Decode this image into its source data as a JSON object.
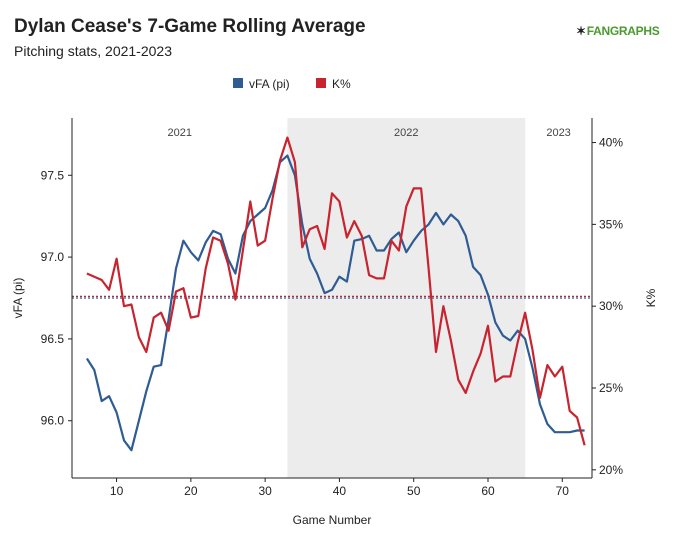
{
  "header": {
    "title": "Dylan Cease's 7-Game Rolling Average",
    "subtitle": "Pitching stats, 2021-2023",
    "logo_text": "FANGRAPHS"
  },
  "colors": {
    "vfa": "#2e5c93",
    "kpct": "#c8242f",
    "shade": "#ececec",
    "axis": "#222222"
  },
  "chart_data": {
    "type": "line",
    "title": "Dylan Cease's 7-Game Rolling Average",
    "subtitle": "Pitching stats, 2021-2023",
    "xlabel": "Game Number",
    "ylabel_left": "vFA (pi)",
    "ylabel_right": "K%",
    "xlim": [
      4,
      74
    ],
    "ylim_left": [
      95.65,
      97.85
    ],
    "ylim_right": [
      0.195,
      0.415
    ],
    "x_ticks": [
      10,
      20,
      30,
      40,
      50,
      60,
      70
    ],
    "y_ticks_left": [
      96.0,
      96.5,
      97.0,
      97.5
    ],
    "y_tick_labels_left": [
      "96.0",
      "96.5",
      "97.0",
      "97.5"
    ],
    "y_ticks_right": [
      0.2,
      0.25,
      0.3,
      0.35,
      0.4
    ],
    "y_tick_labels_right": [
      "20%",
      "25%",
      "30%",
      "35%",
      "40%"
    ],
    "legend": {
      "placement": "top-center",
      "items": [
        "vFA (pi)",
        "K%"
      ]
    },
    "seasons": [
      {
        "label": "2021",
        "start": 4,
        "end": 33
      },
      {
        "label": "2022",
        "start": 33,
        "end": 65
      },
      {
        "label": "2023",
        "start": 65,
        "end": 74
      }
    ],
    "shaded_season": "2022",
    "reference_lines": {
      "vfa_mean": 96.75,
      "kpct_mean": 0.306
    },
    "series": [
      {
        "name": "vFA (pi)",
        "axis": "left",
        "x": [
          6,
          7,
          8,
          9,
          10,
          11,
          12,
          13,
          14,
          15,
          16,
          17,
          18,
          19,
          20,
          21,
          22,
          23,
          24,
          25,
          26,
          27,
          28,
          29,
          30,
          31,
          32,
          33,
          34,
          35,
          36,
          37,
          38,
          39,
          40,
          41,
          42,
          43,
          44,
          45,
          46,
          47,
          48,
          49,
          50,
          51,
          52,
          53,
          54,
          55,
          56,
          57,
          58,
          59,
          60,
          61,
          62,
          63,
          64,
          65,
          66,
          67,
          68,
          69,
          70,
          71,
          72,
          73
        ],
        "values": [
          96.38,
          96.31,
          96.12,
          96.15,
          96.05,
          95.88,
          95.82,
          96.0,
          96.18,
          96.33,
          96.34,
          96.62,
          96.93,
          97.1,
          97.03,
          96.98,
          97.09,
          97.16,
          97.14,
          96.99,
          96.9,
          97.13,
          97.22,
          97.26,
          97.3,
          97.41,
          97.58,
          97.62,
          97.5,
          97.2,
          96.99,
          96.9,
          96.78,
          96.8,
          96.88,
          96.85,
          97.1,
          97.11,
          97.13,
          97.04,
          97.04,
          97.11,
          97.15,
          97.03,
          97.1,
          97.16,
          97.2,
          97.27,
          97.2,
          97.26,
          97.22,
          97.13,
          96.94,
          96.89,
          96.77,
          96.6,
          96.52,
          96.49,
          96.55,
          96.5,
          96.32,
          96.1,
          95.98,
          95.93,
          95.93,
          95.93,
          95.94,
          95.94
        ]
      },
      {
        "name": "K%",
        "axis": "right",
        "x": [
          6,
          7,
          8,
          9,
          10,
          11,
          12,
          13,
          14,
          15,
          16,
          17,
          18,
          19,
          20,
          21,
          22,
          23,
          24,
          25,
          26,
          27,
          28,
          29,
          30,
          31,
          32,
          33,
          34,
          35,
          36,
          37,
          38,
          39,
          40,
          41,
          42,
          43,
          44,
          45,
          46,
          47,
          48,
          49,
          50,
          51,
          52,
          53,
          54,
          55,
          56,
          57,
          58,
          59,
          60,
          61,
          62,
          63,
          64,
          65,
          66,
          67,
          68,
          69,
          70,
          71,
          72,
          73
        ],
        "values": [
          0.32,
          0.318,
          0.316,
          0.31,
          0.329,
          0.3,
          0.301,
          0.281,
          0.272,
          0.293,
          0.296,
          0.285,
          0.309,
          0.311,
          0.293,
          0.294,
          0.323,
          0.342,
          0.34,
          0.326,
          0.304,
          0.334,
          0.364,
          0.337,
          0.34,
          0.366,
          0.389,
          0.403,
          0.388,
          0.336,
          0.347,
          0.349,
          0.335,
          0.369,
          0.364,
          0.342,
          0.352,
          0.343,
          0.319,
          0.317,
          0.317,
          0.34,
          0.334,
          0.361,
          0.372,
          0.372,
          0.323,
          0.272,
          0.3,
          0.279,
          0.255,
          0.247,
          0.26,
          0.271,
          0.288,
          0.254,
          0.257,
          0.257,
          0.278,
          0.296,
          0.273,
          0.244,
          0.264,
          0.257,
          0.263,
          0.236,
          0.232,
          0.215
        ]
      }
    ]
  }
}
